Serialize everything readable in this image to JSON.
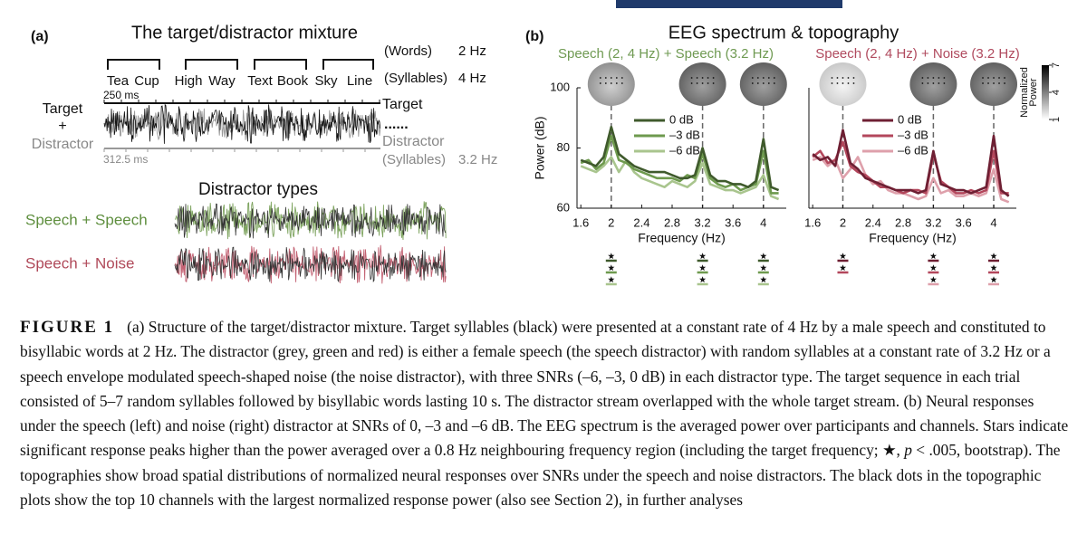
{
  "panel_a": {
    "label": "(a)",
    "title": "The target/distractor mixture",
    "words_label": "(Words)",
    "words_rate": "2 Hz",
    "syllables_label": "(Syllables)",
    "syllables_rate": "4 Hz",
    "syllables": [
      "Tea",
      "Cup",
      "High",
      "Way",
      "Text",
      "Book",
      "Sky",
      "Line"
    ],
    "target_scale": "250 ms",
    "distractor_scale": "312.5 ms",
    "left_target": "Target",
    "left_plus": "+",
    "left_distractor": "Distractor",
    "right_target": "Target",
    "right_dots": "......",
    "right_distractor": "Distractor",
    "distractor_syllables_label": "(Syllables)",
    "distractor_rate": "3.2 Hz",
    "types_title": "Distractor types",
    "type_speech": "Speech + Speech",
    "type_noise": "Speech + Noise"
  },
  "panel_b": {
    "label": "(b)",
    "title": "EEG spectrum & topography",
    "colorbar": {
      "label_lines": [
        "Normalized",
        "Power"
      ],
      "ticks": [
        1,
        4,
        7
      ]
    }
  },
  "chart_data": [
    {
      "type": "line",
      "title": "Speech (2, 4 Hz) + Speech (3.2 Hz)",
      "title_color": "#6f9a52",
      "x_label": "Frequency (Hz)",
      "y_label": "Power (dB)",
      "x": [
        1.6,
        1.7,
        1.8,
        1.9,
        2.0,
        2.1,
        2.2,
        2.3,
        2.4,
        2.5,
        2.6,
        2.7,
        2.8,
        2.9,
        3.0,
        3.1,
        3.2,
        3.3,
        3.4,
        3.5,
        3.6,
        3.7,
        3.8,
        3.9,
        4.0,
        4.1,
        4.2
      ],
      "xlim": [
        1.55,
        4.3
      ],
      "xticks": [
        1.6,
        2,
        2.4,
        2.8,
        3.2,
        3.6,
        4
      ],
      "ylim": [
        60,
        100
      ],
      "yticks": [
        60,
        80,
        100
      ],
      "series": [
        {
          "name": "0 dB",
          "color": "#3f5a2c",
          "values": [
            76,
            75,
            74,
            77,
            87,
            78,
            76,
            74,
            73,
            72,
            72,
            72,
            71,
            70,
            70,
            71,
            80,
            71,
            69,
            69,
            68,
            68,
            67,
            69,
            83,
            67,
            66
          ]
        },
        {
          "name": "–3 dB",
          "color": "#6e9a4e",
          "values": [
            75,
            76,
            73,
            75,
            84,
            76,
            75,
            73,
            72,
            71,
            70,
            70,
            70,
            69,
            71,
            70,
            78,
            70,
            68,
            67,
            68,
            66,
            67,
            68,
            79,
            65,
            65
          ]
        },
        {
          "name": "–6 dB",
          "color": "#a9c58e",
          "values": [
            74,
            73,
            72,
            74,
            77,
            72,
            76,
            72,
            70,
            69,
            68,
            67,
            69,
            68,
            67,
            69,
            75,
            68,
            67,
            66,
            66,
            65,
            66,
            67,
            71,
            64,
            63
          ]
        }
      ]
    },
    {
      "type": "line",
      "title": "Speech (2, 4 Hz) + Noise (3.2 Hz)",
      "title_color": "#b04a5e",
      "x_label": "Frequency (Hz)",
      "x": [
        1.6,
        1.7,
        1.8,
        1.9,
        2.0,
        2.1,
        2.2,
        2.3,
        2.4,
        2.5,
        2.6,
        2.7,
        2.8,
        2.9,
        3.0,
        3.1,
        3.2,
        3.3,
        3.4,
        3.5,
        3.6,
        3.7,
        3.8,
        3.9,
        4.0,
        4.1,
        4.2
      ],
      "xlim": [
        1.55,
        4.3
      ],
      "xticks": [
        1.6,
        2,
        2.4,
        2.8,
        3.2,
        3.6,
        4
      ],
      "ylim": [
        60,
        100
      ],
      "series": [
        {
          "name": "0 dB",
          "color": "#6e1f33",
          "values": [
            78,
            76,
            77,
            74,
            86,
            75,
            73,
            70,
            69,
            68,
            67,
            66,
            66,
            66,
            65,
            66,
            79,
            68,
            67,
            66,
            66,
            65,
            66,
            67,
            84,
            66,
            64
          ]
        },
        {
          "name": "–3 dB",
          "color": "#b3475c",
          "values": [
            77,
            79,
            75,
            76,
            82,
            74,
            72,
            71,
            69,
            67,
            67,
            66,
            65,
            66,
            66,
            65,
            78,
            69,
            67,
            65,
            65,
            66,
            65,
            66,
            79,
            65,
            65
          ]
        },
        {
          "name": "–6 dB",
          "color": "#dea0ab",
          "values": [
            76,
            77,
            74,
            76,
            70,
            73,
            77,
            71,
            68,
            69,
            66,
            65,
            65,
            64,
            63,
            64,
            70,
            65,
            66,
            64,
            64,
            65,
            64,
            65,
            73,
            63,
            62
          ]
        }
      ]
    }
  ],
  "caption": {
    "label": "FIGURE 1",
    "text_before": "(a) Structure of the target/distractor mixture. Target syllables (black) were presented at a constant rate of 4 Hz by a male speech and constituted to bisyllabic words at 2 Hz. The distractor (grey, green and red) is either a female speech (the speech distractor) with random syllables at a constant rate of 3.2 Hz or a speech envelope modulated speech-shaped noise (the noise distractor), with three SNRs (–6, –3, 0 dB) in each distractor type. The target sequence in each trial consisted of 5–7 random syllables followed by bisyllabic words lasting 10 s. The distractor stream overlapped with the whole target stream. (b) Neural responses under the speech (left) and noise (right) distractor at SNRs of 0, –3 and –6 dB. The EEG spectrum is the averaged power over participants and channels. Stars indicate significant response peaks higher than the power averaged over a 0.8 Hz neighbouring frequency region (including the target frequency; ★, ",
    "italic": "p",
    "text_after": " < .005, bootstrap). The topographies show broad spatial distributions of normalized neural responses over SNRs under the speech and noise distractors. The black dots in the topographic plots show the top 10 channels with the largest normalized response power (also see Section 2), in further analyses"
  }
}
